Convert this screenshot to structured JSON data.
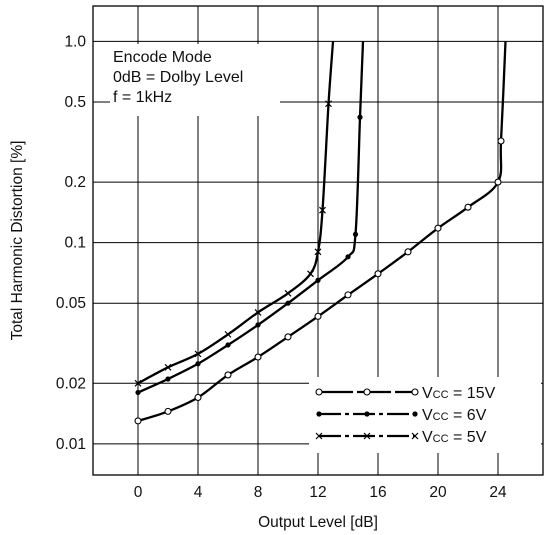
{
  "chart_data": {
    "type": "line",
    "xlabel": "Output Level [dB]",
    "ylabel": "Total Harmonic Distortion [%]",
    "xlim": [
      -3,
      27
    ],
    "ylim": [
      0.007,
      1.5
    ],
    "yscale": "log",
    "x_ticks": [
      0,
      4,
      8,
      12,
      16,
      20,
      24
    ],
    "x_tick_labels": [
      "0",
      "4",
      "8",
      "12",
      "16",
      "20",
      "24"
    ],
    "y_ticks": [
      0.01,
      0.02,
      0.05,
      0.1,
      0.2,
      0.5,
      1.0
    ],
    "y_tick_labels": [
      "0.01",
      "0.02",
      "0.05",
      "0.1",
      "0.2",
      "0.5",
      "1.0"
    ],
    "grid": true,
    "annotation_lines": [
      "Encode Mode",
      "0dB = Dolby Level",
      "f = 1kHz"
    ],
    "legend_position": "bottom-right",
    "series": [
      {
        "name": "Vcc = 15V",
        "name_main": "V",
        "name_sub": "CC",
        "name_rest": " = 15V",
        "marker": "circle",
        "dash": "long-dash",
        "x": [
          0,
          2,
          4,
          6,
          8,
          10,
          12,
          14,
          16,
          18,
          20,
          22,
          24,
          24.2,
          24.5
        ],
        "y": [
          0.013,
          0.0145,
          0.017,
          0.022,
          0.027,
          0.034,
          0.043,
          0.055,
          0.07,
          0.09,
          0.118,
          0.15,
          0.2,
          0.32,
          1.0
        ]
      },
      {
        "name": "Vcc = 6V",
        "name_main": "V",
        "name_sub": "CC",
        "name_rest": " = 6V",
        "marker": "dot",
        "dash": "dash-dot",
        "x": [
          0,
          2,
          4,
          6,
          8,
          10,
          12,
          14,
          14.5,
          14.8,
          15.0
        ],
        "y": [
          0.018,
          0.021,
          0.025,
          0.031,
          0.039,
          0.05,
          0.065,
          0.085,
          0.11,
          0.42,
          1.0
        ]
      },
      {
        "name": "Vcc = 5V",
        "name_main": "V",
        "name_sub": "CC",
        "name_rest": " = 5V",
        "marker": "cross",
        "dash": "dash-dot",
        "x": [
          0,
          2,
          4,
          6,
          8,
          10,
          11.5,
          12,
          12.3,
          12.7,
          13.0
        ],
        "y": [
          0.02,
          0.024,
          0.028,
          0.035,
          0.045,
          0.056,
          0.07,
          0.09,
          0.145,
          0.49,
          1.0
        ]
      }
    ]
  }
}
